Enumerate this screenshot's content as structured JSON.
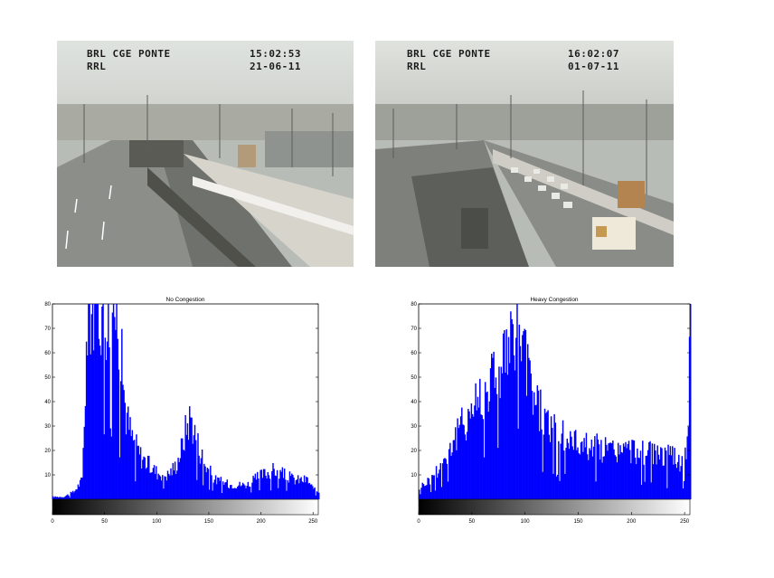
{
  "cameras": [
    {
      "overlay_line1_left": "BRL CGE PONTE",
      "overlay_line1_right": "15:02:53",
      "overlay_line2_left": "RRL",
      "overlay_line2_right": "21-06-11"
    },
    {
      "overlay_line1_left": "BRL CGE PONTE",
      "overlay_line1_right": "16:02:07",
      "overlay_line2_left": "RRL",
      "overlay_line2_right": "01-07-11"
    }
  ],
  "chart_data": [
    {
      "type": "bar",
      "title": "No Congestion",
      "xlim": [
        0,
        255
      ],
      "ylim": [
        0,
        80
      ],
      "xticks": [
        0,
        50,
        100,
        150,
        200,
        250
      ],
      "yticks": [
        10,
        20,
        30,
        40,
        50,
        60,
        70,
        80
      ],
      "colorbar": "grayscale black-to-white",
      "bar_color": "#0000ff",
      "profile_bins": [
        0,
        10,
        20,
        28,
        32,
        34,
        36,
        40,
        46,
        50,
        56,
        62,
        66,
        70,
        76,
        84,
        92,
        100,
        110,
        118,
        124,
        128,
        132,
        138,
        146,
        156,
        170,
        186,
        200,
        212,
        222,
        232,
        244,
        250,
        255
      ],
      "profile_counts": [
        1,
        1,
        3,
        8,
        60,
        80,
        80,
        80,
        80,
        78,
        80,
        78,
        55,
        35,
        25,
        18,
        14,
        11,
        10,
        14,
        22,
        30,
        34,
        24,
        14,
        8,
        6,
        6,
        10,
        12,
        10,
        8,
        8,
        4,
        3
      ]
    },
    {
      "type": "bar",
      "title": "Heavy Congestion",
      "xlim": [
        0,
        255
      ],
      "ylim": [
        0,
        80
      ],
      "xticks": [
        0,
        50,
        100,
        150,
        200,
        250
      ],
      "yticks": [
        10,
        20,
        30,
        40,
        50,
        60,
        70,
        80
      ],
      "colorbar": "grayscale black-to-white",
      "bar_color": "#0000ff",
      "profile_bins": [
        0,
        10,
        20,
        30,
        40,
        50,
        60,
        70,
        80,
        88,
        92,
        96,
        100,
        106,
        112,
        120,
        130,
        145,
        160,
        180,
        200,
        215,
        230,
        240,
        248,
        253,
        255
      ],
      "profile_counts": [
        5,
        8,
        14,
        22,
        30,
        38,
        44,
        52,
        58,
        62,
        72,
        64,
        56,
        46,
        38,
        32,
        26,
        24,
        22,
        20,
        20,
        19,
        18,
        17,
        15,
        25,
        80
      ]
    }
  ]
}
